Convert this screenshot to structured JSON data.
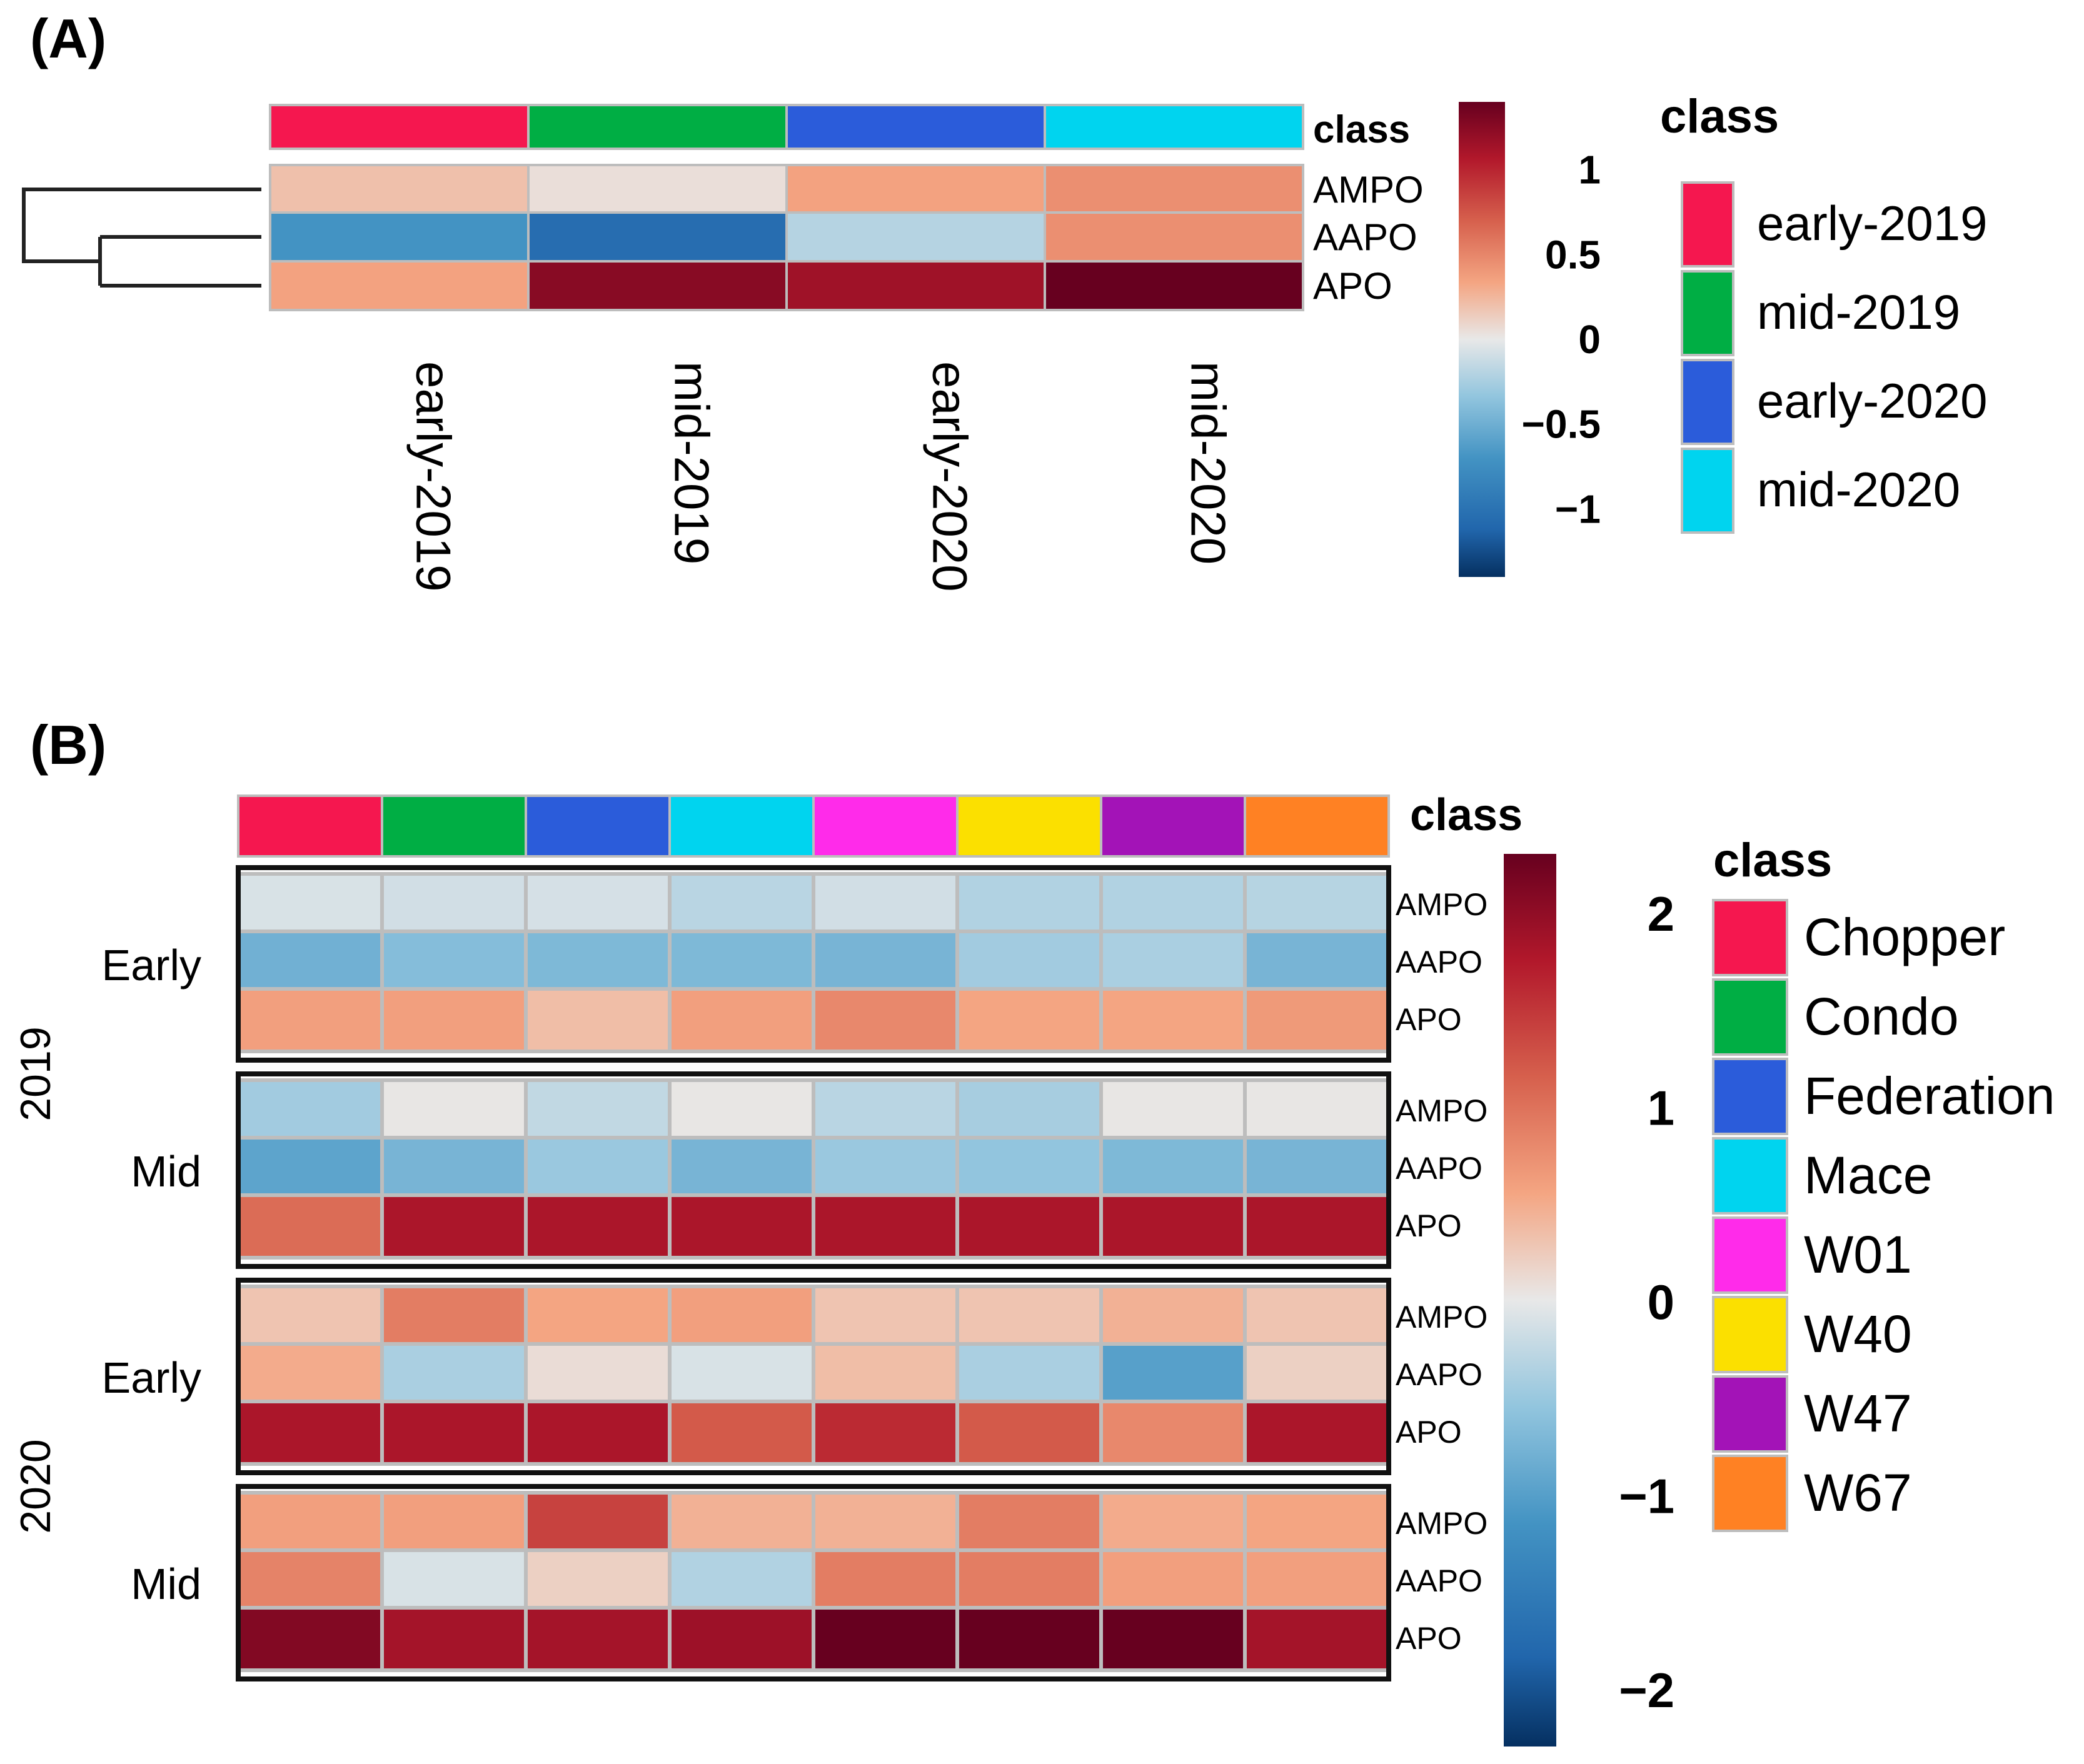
{
  "chart_data": [
    {
      "panel_label": "(A)",
      "type": "heatmap",
      "rows": [
        "AMPO",
        "AAPO",
        "APO"
      ],
      "columns": [
        "early-2019",
        "mid-2019",
        "early-2020",
        "mid-2020"
      ],
      "column_class_colors": [
        "#F5174F",
        "#00AE44",
        "#2B5CDA",
        "#00D4EF"
      ],
      "values": [
        [
          0.2,
          0.05,
          0.35,
          0.45
        ],
        [
          -0.7,
          -1.05,
          -0.2,
          0.45
        ],
        [
          0.35,
          1.25,
          1.15,
          1.5
        ]
      ],
      "class_label": "class",
      "colorbar": {
        "min": -1.4,
        "max": 1.4,
        "ticks": [
          "1",
          "0.5",
          "0",
          "−0.5",
          "−1"
        ],
        "tick_values": [
          1,
          0.5,
          0,
          -0.5,
          -1
        ]
      },
      "legend": {
        "title": "class",
        "entries": [
          "early-2019",
          "mid-2019",
          "early-2020",
          "mid-2020"
        ],
        "colors": [
          "#F5174F",
          "#00AE44",
          "#2B5CDA",
          "#00D4EF"
        ],
        "placement": "right"
      },
      "row_dendrogram": true
    },
    {
      "panel_label": "(B)",
      "type": "heatmap",
      "columns": [
        "Chopper",
        "Condo",
        "Federation",
        "Mace",
        "W01",
        "W40",
        "W47",
        "W67"
      ],
      "column_class_colors": [
        "#F5174F",
        "#00AE44",
        "#2B5CDA",
        "#00D4EF",
        "#FF2BEA",
        "#FBE000",
        "#A313B7",
        "#FF8123"
      ],
      "row_labels": [
        "AMPO",
        "AAPO",
        "APO"
      ],
      "years": [
        "2019",
        "2020"
      ],
      "groups": [
        {
          "year": "2019",
          "label": "Early",
          "values": [
            [
              -0.1,
              -0.15,
              -0.12,
              -0.3,
              -0.15,
              -0.35,
              -0.35,
              -0.32
            ],
            [
              -0.8,
              -0.65,
              -0.7,
              -0.7,
              -0.75,
              -0.45,
              -0.4,
              -0.75
            ],
            [
              0.6,
              0.6,
              0.35,
              0.6,
              0.8,
              0.55,
              0.55,
              0.65
            ]
          ]
        },
        {
          "year": "2019",
          "label": "Mid",
          "values": [
            [
              -0.45,
              0.02,
              -0.25,
              0.02,
              -0.3,
              -0.42,
              0.02,
              0.02
            ],
            [
              -0.95,
              -0.75,
              -0.5,
              -0.75,
              -0.5,
              -0.55,
              -0.7,
              -0.75
            ],
            [
              1.05,
              1.8,
              1.8,
              1.8,
              1.8,
              1.8,
              1.8,
              1.8
            ]
          ]
        },
        {
          "year": "2020",
          "label": "Early",
          "values": [
            [
              0.3,
              0.9,
              0.55,
              0.6,
              0.3,
              0.3,
              0.45,
              0.3
            ],
            [
              0.5,
              -0.4,
              0.1,
              -0.1,
              0.35,
              -0.4,
              -1.0,
              0.2
            ],
            [
              1.8,
              1.8,
              1.8,
              1.2,
              1.6,
              1.2,
              0.8,
              1.8
            ]
          ]
        },
        {
          "year": "2020",
          "label": "Mid",
          "values": [
            [
              0.6,
              0.6,
              1.4,
              0.45,
              0.45,
              0.9,
              0.5,
              0.55
            ],
            [
              0.85,
              -0.1,
              0.2,
              -0.35,
              0.9,
              0.9,
              0.6,
              0.6
            ],
            [
              2.1,
              1.85,
              1.85,
              1.9,
              2.4,
              2.4,
              2.4,
              1.85
            ]
          ]
        }
      ],
      "class_label": "class",
      "colorbar": {
        "min": -2.3,
        "max": 2.3,
        "ticks": [
          "2",
          "1",
          "0",
          "−1",
          "−2"
        ],
        "tick_values": [
          2,
          1,
          0,
          -1,
          -2
        ]
      },
      "legend": {
        "title": "class",
        "entries": [
          "Chopper",
          "Condo",
          "Federation",
          "Mace",
          "W01",
          "W40",
          "W47",
          "W67"
        ],
        "colors": [
          "#F5174F",
          "#00AE44",
          "#2B5CDA",
          "#00D4EF",
          "#FF2BEA",
          "#FBE000",
          "#A313B7",
          "#FF8123"
        ],
        "placement": "right"
      }
    }
  ]
}
